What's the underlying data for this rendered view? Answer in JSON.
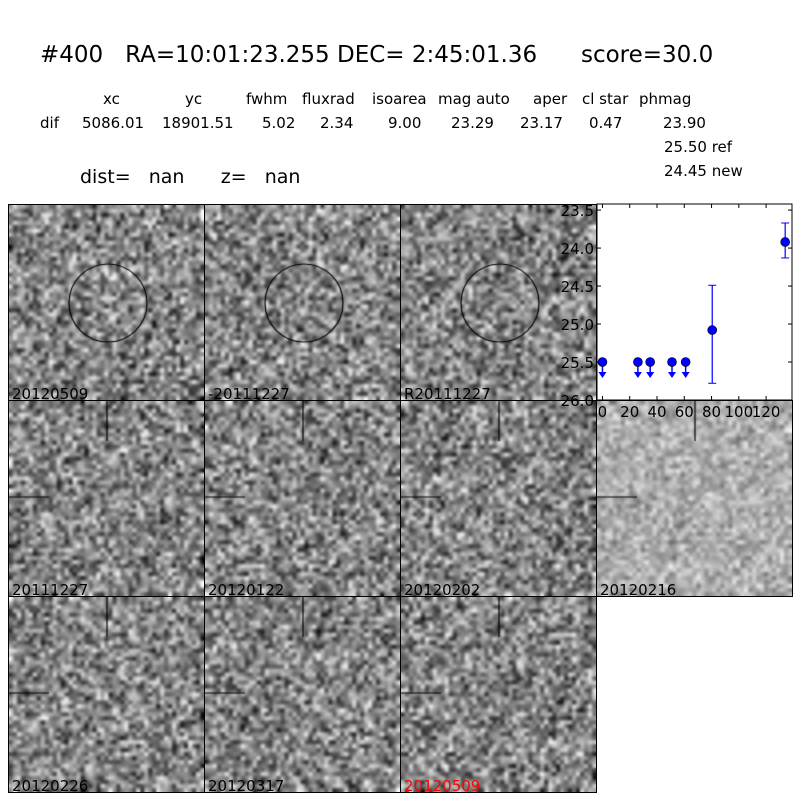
{
  "title": "#400   RA=10:01:23.255 DEC= 2:45:01.36      score=30.0",
  "table": {
    "headers": [
      "xc",
      "yc",
      "fwhm",
      "fluxrad",
      "isoarea",
      "mag auto",
      "aper",
      "cl star",
      "phmag"
    ],
    "row_label": "dif",
    "values": [
      "5086.01",
      "18901.51",
      "5.02",
      "2.34",
      "9.00",
      "23.29",
      "23.17",
      "0.47",
      "23.90"
    ],
    "phmag_ref": "25.50 ref",
    "phmag_new": "24.45 new"
  },
  "dist_line": "dist=   nan      z=   nan",
  "stamps": [
    {
      "label": "20120509",
      "marker": "circle"
    },
    {
      "label": "-20111227",
      "marker": "circle"
    },
    {
      "label": "R20111227",
      "marker": "circle"
    },
    {
      "label": "20111227",
      "marker": "cross"
    },
    {
      "label": "20120122",
      "marker": "cross"
    },
    {
      "label": "20120202",
      "marker": "cross"
    },
    {
      "label": "20120216",
      "marker": "cross"
    },
    {
      "label": "20120226",
      "marker": "cross"
    },
    {
      "label": "20120317",
      "marker": "cross"
    },
    {
      "label": "20120509",
      "marker": "cross",
      "color": "#ff0000"
    }
  ],
  "chart_data": {
    "type": "scatter",
    "xlim": [
      -4,
      139
    ],
    "ylim": [
      26.0,
      23.42
    ],
    "y_inverted": true,
    "xticks": [
      "0",
      "20",
      "40",
      "60",
      "80",
      "100",
      "120"
    ],
    "yticks": [
      "23.5",
      "24.0",
      "24.5",
      "25.0",
      "25.5",
      "26.0"
    ],
    "color": "#0000ff",
    "upper_limits": [
      {
        "x": 0,
        "y": 25.5
      },
      {
        "x": 26,
        "y": 25.5
      },
      {
        "x": 35,
        "y": 25.5
      },
      {
        "x": 51,
        "y": 25.5
      },
      {
        "x": 61,
        "y": 25.5
      }
    ],
    "detections": [
      {
        "x": 80.5,
        "y": 25.08,
        "ylo": 24.49,
        "yhi": 25.78
      },
      {
        "x": 134,
        "y": 23.92,
        "ylo": 23.67,
        "yhi": 24.13
      }
    ]
  }
}
